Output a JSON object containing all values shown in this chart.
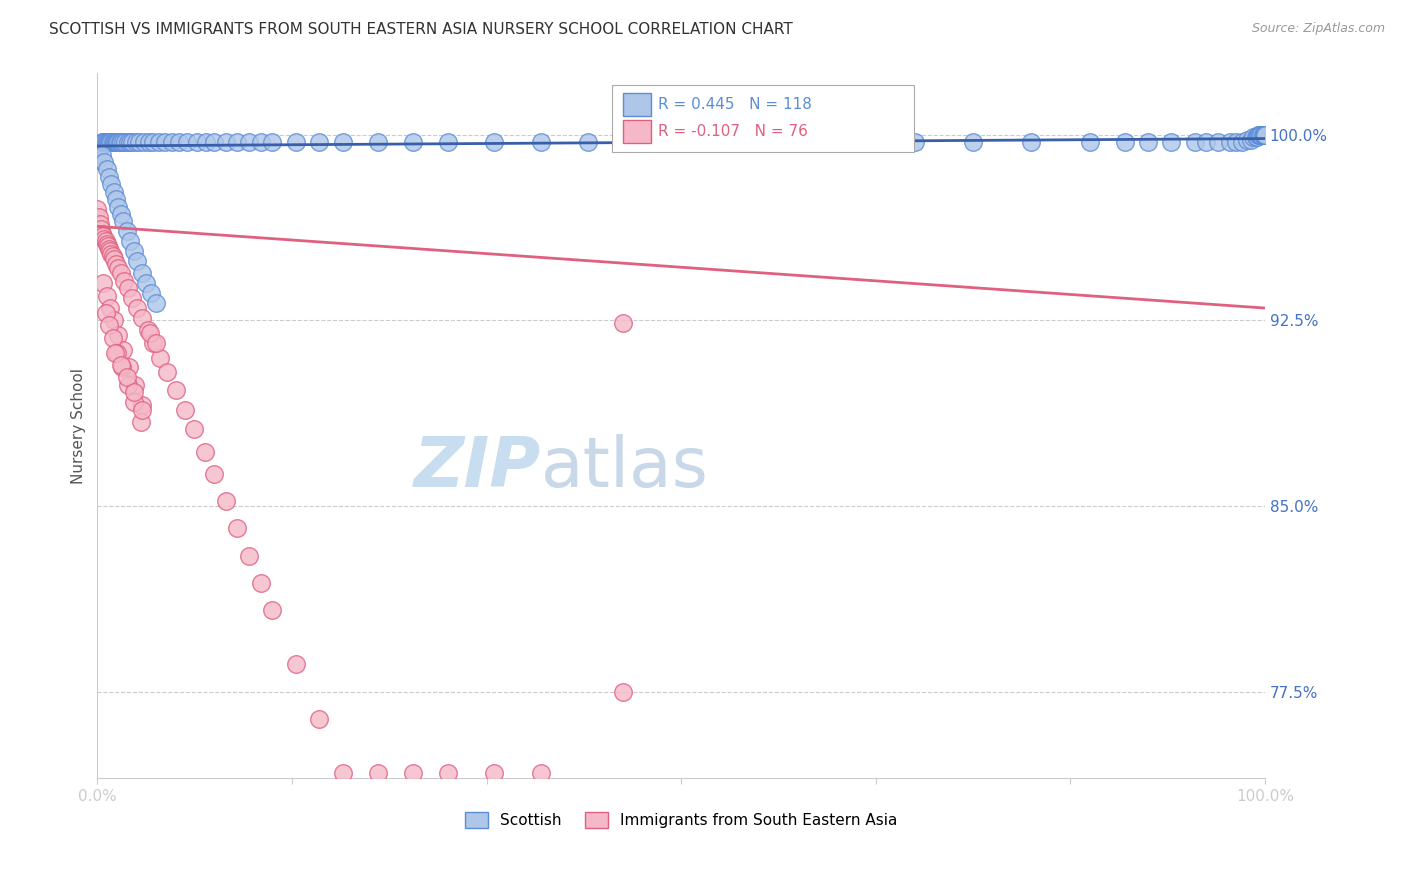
{
  "title": "SCOTTISH VS IMMIGRANTS FROM SOUTH EASTERN ASIA NURSERY SCHOOL CORRELATION CHART",
  "source": "Source: ZipAtlas.com",
  "ylabel": "Nursery School",
  "xlim": [
    0.0,
    1.0
  ],
  "ylim": [
    0.74,
    1.025
  ],
  "yticks": [
    0.775,
    0.85,
    0.925,
    1.0
  ],
  "ytick_labels": [
    "77.5%",
    "85.0%",
    "92.5%",
    "100.0%"
  ],
  "legend_blue_label": "Scottish",
  "legend_pink_label": "Immigrants from South Eastern Asia",
  "r_blue": 0.445,
  "n_blue": 118,
  "r_pink": -0.107,
  "n_pink": 76,
  "blue_color": "#aec6e8",
  "blue_edge_color": "#5b8dd9",
  "pink_color": "#f5b8c8",
  "pink_edge_color": "#e06080",
  "blue_line_color": "#3a5faa",
  "pink_line_color": "#e06080",
  "watermark_zip_color": "#c8ddf0",
  "watermark_atlas_color": "#c8ddf0",
  "grid_color": "#cccccc",
  "title_color": "#333333",
  "axis_label_color": "#555555",
  "tick_color": "#4472c4",
  "background_color": "#ffffff",
  "blue_x": [
    0.0,
    0.001,
    0.002,
    0.003,
    0.004,
    0.005,
    0.006,
    0.007,
    0.008,
    0.009,
    0.01,
    0.011,
    0.012,
    0.013,
    0.014,
    0.015,
    0.016,
    0.017,
    0.018,
    0.019,
    0.02,
    0.022,
    0.024,
    0.026,
    0.028,
    0.03,
    0.033,
    0.036,
    0.04,
    0.044,
    0.048,
    0.053,
    0.058,
    0.064,
    0.07,
    0.077,
    0.085,
    0.093,
    0.1,
    0.11,
    0.12,
    0.13,
    0.14,
    0.15,
    0.17,
    0.19,
    0.21,
    0.24,
    0.27,
    0.3,
    0.34,
    0.38,
    0.42,
    0.46,
    0.5,
    0.55,
    0.6,
    0.65,
    0.7,
    0.75,
    0.8,
    0.85,
    0.88,
    0.9,
    0.92,
    0.94,
    0.95,
    0.96,
    0.97,
    0.975,
    0.98,
    0.985,
    0.988,
    0.99,
    0.992,
    0.993,
    0.994,
    0.995,
    0.996,
    0.997,
    0.998,
    0.999,
    0.9992,
    0.9994,
    0.9996,
    0.9998,
    1.0,
    1.0,
    1.0,
    1.0,
    1.0,
    1.0,
    1.0,
    1.0,
    1.0,
    1.0,
    1.0,
    1.0,
    1.0,
    1.0,
    0.004,
    0.006,
    0.008,
    0.01,
    0.012,
    0.014,
    0.016,
    0.018,
    0.02,
    0.022,
    0.025,
    0.028,
    0.031,
    0.034,
    0.038,
    0.042,
    0.046,
    0.05
  ],
  "blue_y": [
    0.99,
    0.993,
    0.995,
    0.996,
    0.997,
    0.997,
    0.997,
    0.997,
    0.997,
    0.997,
    0.997,
    0.997,
    0.997,
    0.997,
    0.997,
    0.997,
    0.997,
    0.997,
    0.997,
    0.997,
    0.997,
    0.997,
    0.997,
    0.997,
    0.997,
    0.997,
    0.997,
    0.997,
    0.997,
    0.997,
    0.997,
    0.997,
    0.997,
    0.997,
    0.997,
    0.997,
    0.997,
    0.997,
    0.997,
    0.997,
    0.997,
    0.997,
    0.997,
    0.997,
    0.997,
    0.997,
    0.997,
    0.997,
    0.997,
    0.997,
    0.997,
    0.997,
    0.997,
    0.997,
    0.997,
    0.997,
    0.997,
    0.997,
    0.997,
    0.997,
    0.997,
    0.997,
    0.997,
    0.997,
    0.997,
    0.997,
    0.997,
    0.997,
    0.997,
    0.997,
    0.997,
    0.998,
    0.998,
    0.999,
    0.999,
    0.999,
    1.0,
    1.0,
    1.0,
    1.0,
    1.0,
    1.0,
    1.0,
    1.0,
    1.0,
    1.0,
    1.0,
    1.0,
    1.0,
    1.0,
    1.0,
    1.0,
    1.0,
    1.0,
    1.0,
    1.0,
    1.0,
    1.0,
    1.0,
    1.0,
    0.992,
    0.989,
    0.986,
    0.983,
    0.98,
    0.977,
    0.974,
    0.971,
    0.968,
    0.965,
    0.961,
    0.957,
    0.953,
    0.949,
    0.944,
    0.94,
    0.936,
    0.932
  ],
  "pink_x": [
    0.0,
    0.001,
    0.002,
    0.003,
    0.004,
    0.005,
    0.006,
    0.007,
    0.008,
    0.009,
    0.01,
    0.011,
    0.012,
    0.013,
    0.014,
    0.016,
    0.018,
    0.02,
    0.023,
    0.026,
    0.03,
    0.034,
    0.038,
    0.043,
    0.048,
    0.054,
    0.06,
    0.067,
    0.075,
    0.083,
    0.092,
    0.1,
    0.11,
    0.12,
    0.13,
    0.14,
    0.15,
    0.17,
    0.19,
    0.21,
    0.24,
    0.27,
    0.3,
    0.34,
    0.38,
    0.005,
    0.008,
    0.011,
    0.014,
    0.018,
    0.022,
    0.027,
    0.032,
    0.038,
    0.007,
    0.01,
    0.013,
    0.017,
    0.021,
    0.026,
    0.031,
    0.037,
    0.045,
    0.05,
    0.015,
    0.02,
    0.025,
    0.031,
    0.038,
    0.45,
    0.45
  ],
  "pink_y": [
    0.97,
    0.967,
    0.964,
    0.962,
    0.96,
    0.959,
    0.958,
    0.957,
    0.956,
    0.955,
    0.954,
    0.953,
    0.952,
    0.951,
    0.95,
    0.948,
    0.946,
    0.944,
    0.941,
    0.938,
    0.934,
    0.93,
    0.926,
    0.921,
    0.916,
    0.91,
    0.904,
    0.897,
    0.889,
    0.881,
    0.872,
    0.863,
    0.852,
    0.841,
    0.83,
    0.819,
    0.808,
    0.786,
    0.764,
    0.742,
    0.742,
    0.742,
    0.742,
    0.742,
    0.742,
    0.94,
    0.935,
    0.93,
    0.925,
    0.919,
    0.913,
    0.906,
    0.899,
    0.891,
    0.928,
    0.923,
    0.918,
    0.912,
    0.906,
    0.899,
    0.892,
    0.884,
    0.92,
    0.916,
    0.912,
    0.907,
    0.902,
    0.896,
    0.889,
    0.924,
    0.775
  ]
}
